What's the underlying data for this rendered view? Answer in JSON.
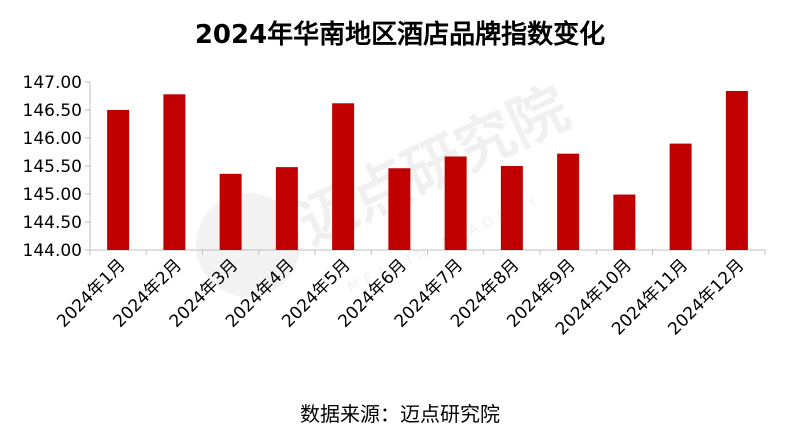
{
  "chart_data": {
    "type": "bar",
    "title": "2024年华南地区酒店品牌指数变化",
    "categories": [
      "2024年1月",
      "2024年2月",
      "2024年3月",
      "2024年4月",
      "2024年5月",
      "2024年6月",
      "2024年7月",
      "2024年8月",
      "2024年9月",
      "2024年10月",
      "2024年11月",
      "2024年12月"
    ],
    "values": [
      146.5,
      146.78,
      145.36,
      145.48,
      146.62,
      145.46,
      145.67,
      145.5,
      145.72,
      144.99,
      145.9,
      146.84
    ],
    "ylim": [
      144.0,
      147.0
    ],
    "yticks": [
      "144.00",
      "144.50",
      "145.00",
      "145.50",
      "146.00",
      "146.50",
      "147.00"
    ],
    "grid": false,
    "bar_color": "#C00000"
  },
  "source": "数据来源：迈点研究院",
  "watermark": {
    "text": "迈点研究院",
    "subtext": "MEADIN ACADEMY"
  }
}
